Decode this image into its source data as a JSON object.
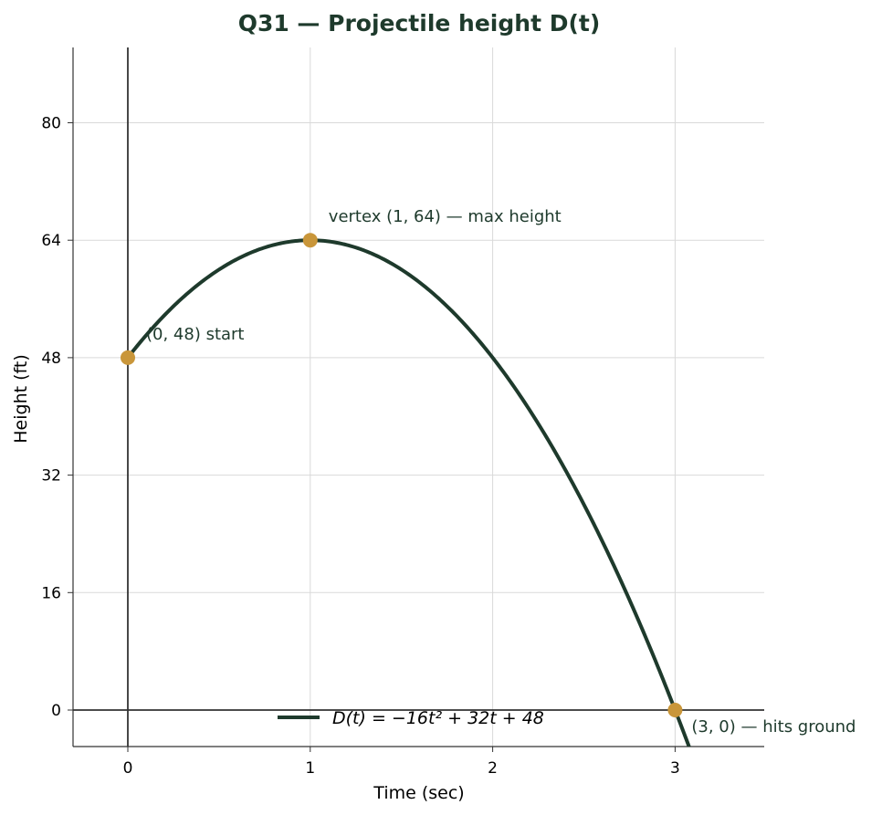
{
  "chart_data": {
    "type": "line",
    "title": "Q31 — Projectile height D(t)",
    "xlabel": "Time (sec)",
    "ylabel": "Height (ft)",
    "xlim": [
      -0.3,
      3.5
    ],
    "ylim": [
      -5,
      90
    ],
    "xticks": [
      0,
      1,
      2,
      3
    ],
    "yticks": [
      0,
      16,
      32,
      48,
      64,
      80
    ],
    "grid": true,
    "legend_placement": "bottom-center",
    "series": [
      {
        "name": "D(t) = −16t² + 32t + 48",
        "function": "-16t^2 + 32t + 48",
        "coefficients": {
          "a": -16,
          "b": 32,
          "c": 48
        },
        "x_range": [
          0,
          3.1
        ],
        "color": "#1e3a2c"
      }
    ],
    "points": [
      {
        "x": 0,
        "y": 48,
        "label": "(0, 48) start"
      },
      {
        "x": 1,
        "y": 64,
        "label": "vertex (1, 64) — max height"
      },
      {
        "x": 3,
        "y": 0,
        "label": "(3, 0) — hits ground"
      }
    ],
    "colors": {
      "curve": "#1e3a2c",
      "points": "#c9963a",
      "annotation": "#1e3a2c",
      "title": "#1e3a2c",
      "grid": "#d9d9d9",
      "axis": "#333333"
    }
  }
}
